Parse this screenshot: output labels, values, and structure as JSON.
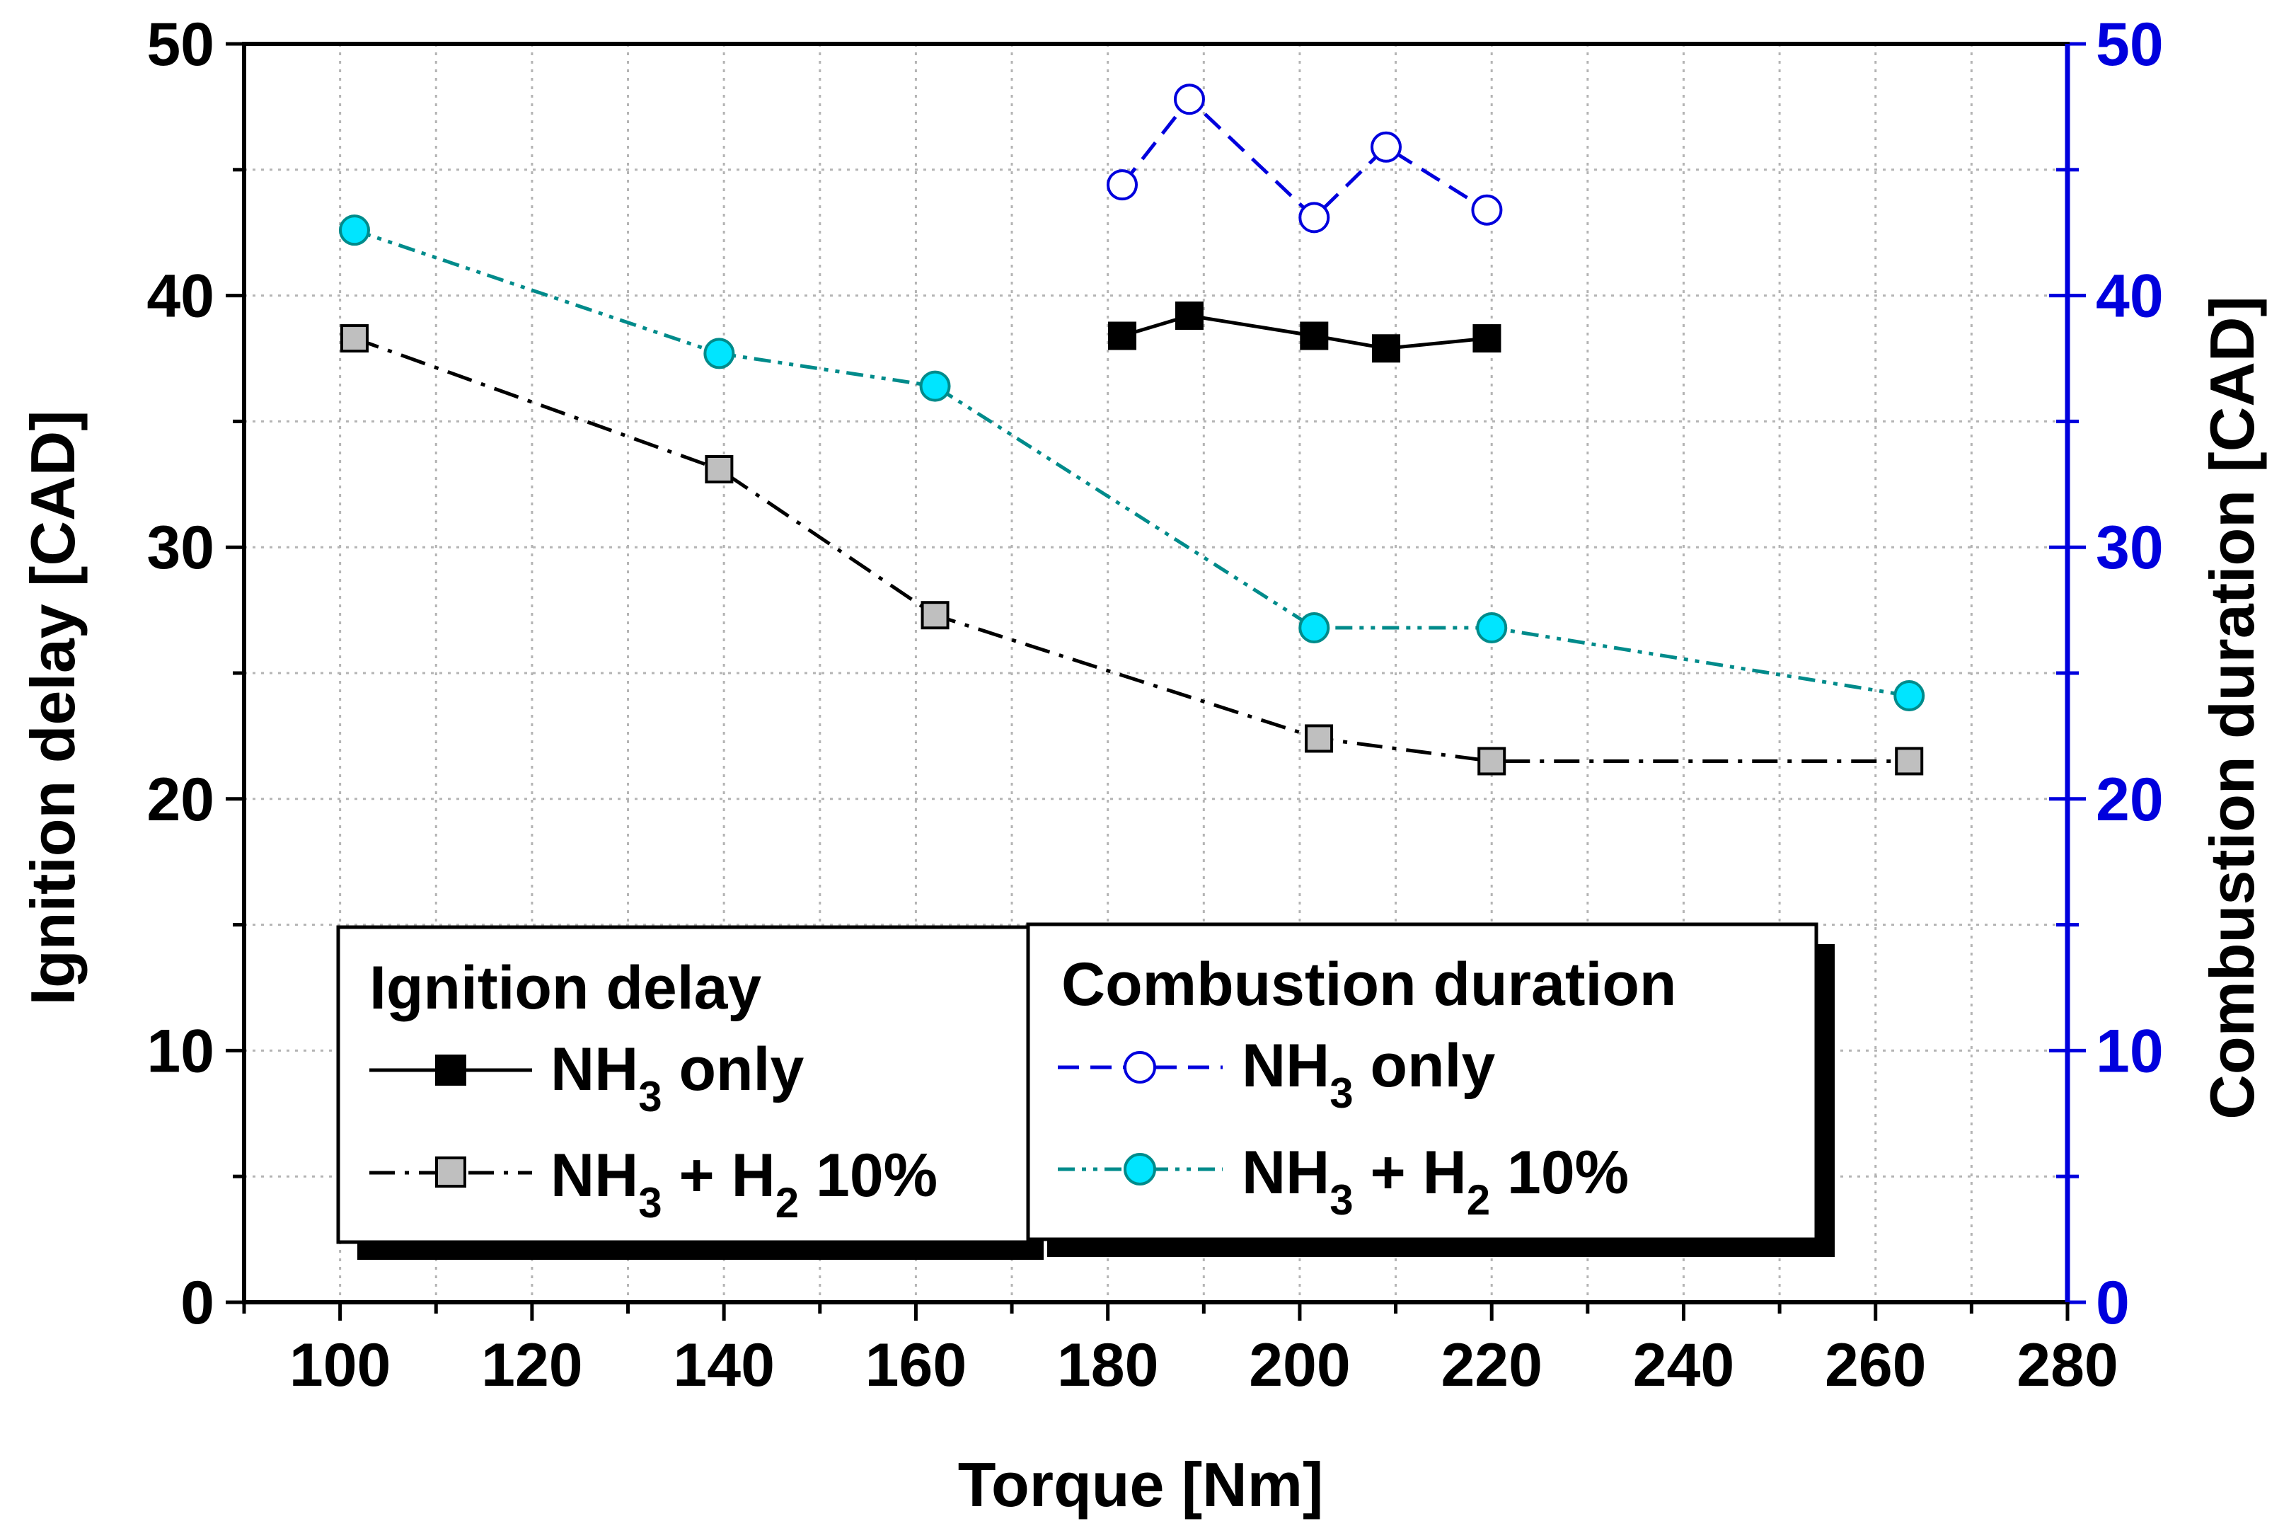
{
  "colors": {
    "black": "#000000",
    "blue": "#0000dd",
    "teal": "#008b8b",
    "gray_marker": "#bfbfbf",
    "cyan_marker": "#00e5ff",
    "grid": "#b4b4b4"
  },
  "chart_data": {
    "type": "line",
    "xlabel": "Torque [Nm]",
    "ylabel_left": "Ignition delay [CAD]",
    "ylabel_right": "Combustion duration [CAD]",
    "xlim": [
      90,
      280
    ],
    "ylim_left": [
      0,
      50
    ],
    "ylim_right": [
      0,
      50
    ],
    "x_ticks": [
      100,
      120,
      140,
      160,
      180,
      200,
      220,
      240,
      260,
      280
    ],
    "y_ticks_left": [
      0,
      10,
      20,
      30,
      40,
      50
    ],
    "y_ticks_right": [
      0,
      10,
      20,
      30,
      40,
      50
    ],
    "grid": true,
    "legend_groups": [
      {
        "title": "Ignition delay",
        "entries": [
          {
            "base": "NH",
            "sub": "3",
            "rest": " only"
          },
          {
            "base": "NH",
            "sub": "3",
            "mid": " + H",
            "sub2": "2",
            "rest": " 10%"
          }
        ]
      },
      {
        "title": "Combustion duration",
        "entries": [
          {
            "base": "NH",
            "sub": "3",
            "rest": " only"
          },
          {
            "base": "NH",
            "sub": "3",
            "mid": " + H",
            "sub2": "2",
            "rest": " 10%"
          }
        ]
      }
    ],
    "series": [
      {
        "name": "Ignition delay - NH3 only",
        "axis": "left",
        "style": "solid",
        "marker": "filled-square",
        "color": "#000000",
        "x": [
          181.5,
          188.5,
          201.5,
          209,
          219.5
        ],
        "y": [
          38.4,
          39.2,
          38.4,
          37.9,
          38.3
        ]
      },
      {
        "name": "Ignition delay - NH3 + H2 10%",
        "axis": "left",
        "style": "dash-dot",
        "marker": "gray-square",
        "color": "#000000",
        "x": [
          101.5,
          139.5,
          162,
          202,
          220,
          263.5
        ],
        "y": [
          38.3,
          33.1,
          27.3,
          22.4,
          21.5,
          21.5
        ]
      },
      {
        "name": "Combustion duration - NH3 only",
        "axis": "right",
        "style": "dashed",
        "marker": "open-circle",
        "color": "#0000dd",
        "x": [
          181.5,
          188.5,
          201.5,
          209,
          219.5
        ],
        "y": [
          44.4,
          47.8,
          43.1,
          45.9,
          43.4
        ]
      },
      {
        "name": "Combustion duration - NH3 + H2 10%",
        "axis": "right",
        "style": "dash-dot-dot",
        "marker": "cyan-circle",
        "color": "#008b8b",
        "x": [
          101.5,
          139.5,
          162,
          201.5,
          220,
          263.5
        ],
        "y": [
          42.6,
          37.7,
          36.4,
          26.8,
          26.8,
          24.1
        ]
      }
    ]
  }
}
